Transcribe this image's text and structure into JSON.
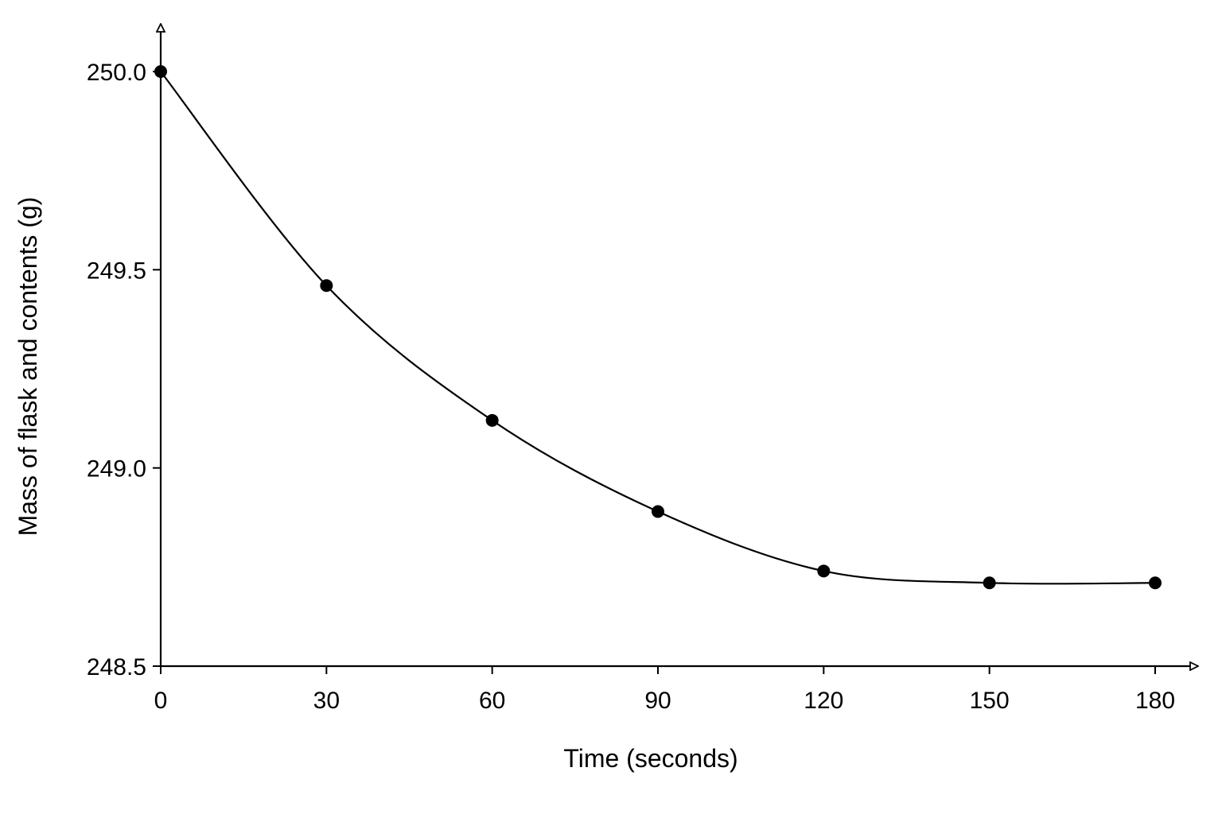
{
  "chart_data": {
    "type": "line",
    "title": "",
    "xlabel": "Time (seconds)",
    "ylabel": "Mass of flask and contents (g)",
    "x": [
      0,
      30,
      60,
      90,
      120,
      150,
      180
    ],
    "series": [
      {
        "values": [
          250.0,
          249.46,
          249.12,
          248.89,
          248.74,
          248.71,
          248.71
        ]
      }
    ],
    "x_ticks": [
      "0",
      "30",
      "60",
      "90",
      "120",
      "150",
      "180"
    ],
    "y_ticks": [
      "248.5",
      "249.0",
      "249.5",
      "250.0"
    ],
    "xlim": [
      0,
      180
    ],
    "ylim": [
      248.5,
      250.0
    ],
    "grid": false,
    "legend": "none",
    "marker": "filled-circle",
    "line_style": "smooth",
    "colors": {
      "line": "#000000",
      "marker": "#000000",
      "axis": "#000000",
      "background": "#ffffff"
    }
  }
}
